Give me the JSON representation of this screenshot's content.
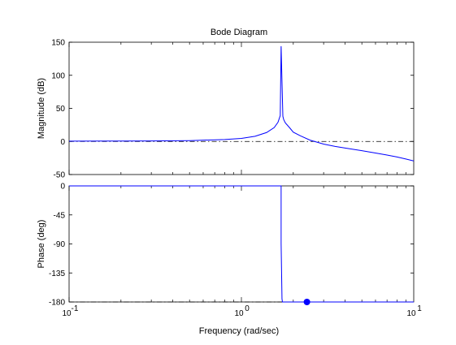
{
  "chart_data": {
    "type": "line",
    "title": "Bode Diagram",
    "xlabel": "Frequency  (rad/sec)",
    "x_scale": "log",
    "xlim": [
      0.1,
      10
    ],
    "x_ticks": [
      {
        "value": 0.1,
        "base": "10",
        "exp": "-1"
      },
      {
        "value": 1,
        "base": "10",
        "exp": "0"
      },
      {
        "value": 10,
        "base": "10",
        "exp": "1"
      }
    ],
    "grid": false,
    "line_color": "#0000ff",
    "panels": [
      {
        "key": "magnitude",
        "ylabel": "Magnitude (dB)",
        "ylim": [
          -50,
          150
        ],
        "yticks": [
          -50,
          0,
          50,
          100,
          150
        ],
        "yticklabels": [
          "-50",
          "0",
          "50",
          "100",
          "150"
        ],
        "reference_line": 0,
        "series": [
          {
            "x": [
              0.1,
              0.2,
              0.3,
              0.5,
              0.8,
              1.0,
              1.2,
              1.4,
              1.55,
              1.63,
              1.68,
              1.7,
              1.72,
              1.74,
              1.76,
              1.8,
              1.9,
              2.0,
              2.2,
              2.5,
              3.0,
              3.5,
              4.0,
              5.0,
              6.0,
              7.0,
              8.0,
              9.0,
              10.0
            ],
            "values": [
              0.5,
              0.6,
              0.8,
              1.3,
              2.9,
              4.6,
              7.8,
              13.5,
              21.0,
              29.0,
              39.0,
              144.0,
              90.0,
              38.0,
              33.0,
              28.0,
              21.0,
              14.0,
              8.5,
              2.0,
              -4.0,
              -7.5,
              -10.0,
              -14.0,
              -17.5,
              -20.5,
              -23.5,
              -26.5,
              -29.5
            ]
          }
        ]
      },
      {
        "key": "phase",
        "ylabel": "Phase (deg)",
        "ylim": [
          -180,
          0
        ],
        "yticks": [
          -180,
          -135,
          -90,
          -45,
          0
        ],
        "yticklabels": [
          "-180",
          "-135",
          "-90",
          "-45",
          "0"
        ],
        "reference_line": -180,
        "series": [
          {
            "x": [
              0.1,
              1.0,
              1.7,
              1.7,
              1.72,
              1.73,
              10.0
            ],
            "values": [
              0,
              0,
              0,
              -90,
              -175,
              -180,
              -180
            ]
          }
        ],
        "marker": {
          "x": 2.4,
          "y": -180
        }
      }
    ]
  }
}
